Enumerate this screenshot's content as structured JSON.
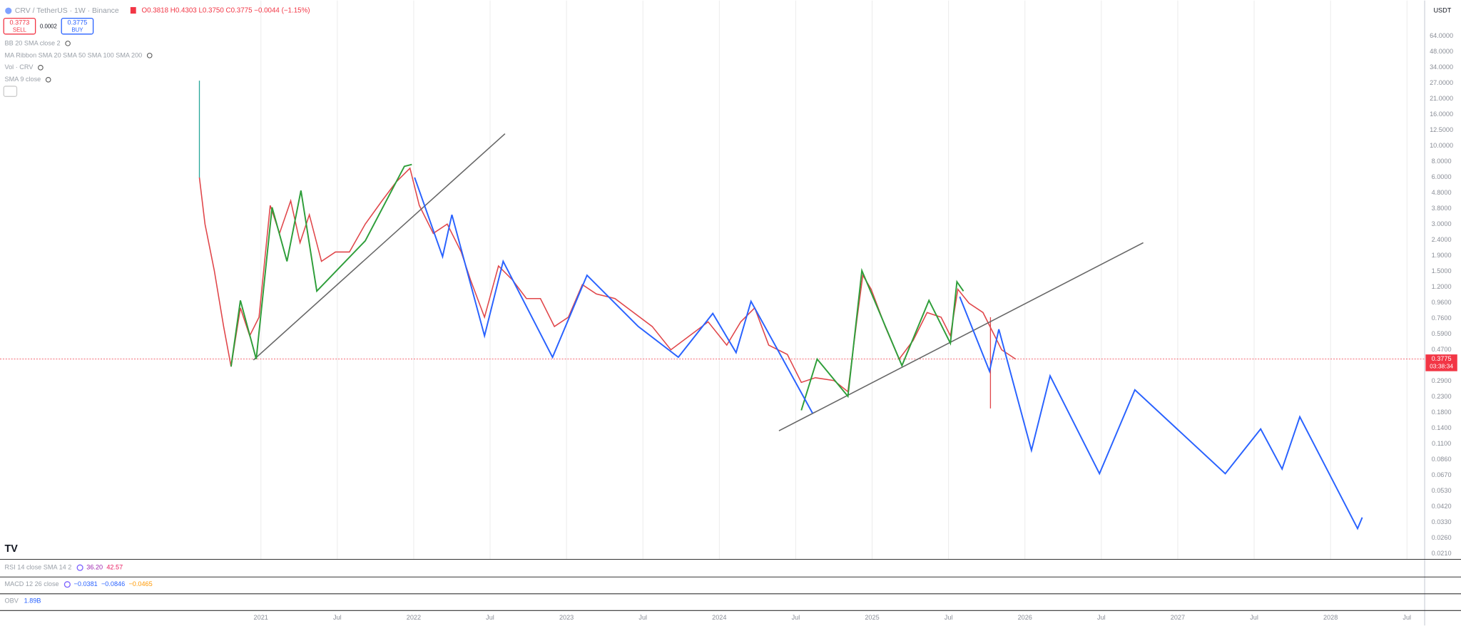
{
  "header": {
    "symbol": "CRV / TetherUS · 1W · Binance",
    "ohlc": "O0.3818 H0.4303 L0.3750 C0.3775 −0.0044 (−1.15%)",
    "sell_price": "0.3773",
    "sell_label": "SELL",
    "spread": "0.0002",
    "buy_price": "0.3775",
    "buy_label": "BUY"
  },
  "indicators": [
    "BB 20 SMA close 2",
    "MA Ribbon SMA 20 SMA 50 SMA 100 SMA 200",
    "Vol · CRV",
    "SMA 9 close"
  ],
  "currency": "USDT",
  "price_axis": [
    "64.0000",
    "48.0000",
    "34.0000",
    "27.0000",
    "21.0000",
    "16.0000",
    "12.5000",
    "10.0000",
    "8.0000",
    "6.0000",
    "4.8000",
    "3.8000",
    "3.0000",
    "2.4000",
    "1.9000",
    "1.5000",
    "1.2000",
    "0.9600",
    "0.7600",
    "0.5900",
    "0.4700",
    "0.2900",
    "0.2300",
    "0.1800",
    "0.1400",
    "0.1100",
    "0.0860",
    "0.0670",
    "0.0530",
    "0.0420",
    "0.0330",
    "0.0260",
    "0.0210"
  ],
  "current_price": {
    "price": "0.3775",
    "countdown": "03:38:34"
  },
  "time_axis": [
    "2021",
    "Jul",
    "2022",
    "Jul",
    "2023",
    "Jul",
    "2024",
    "Jul",
    "2025",
    "Jul",
    "2026",
    "Jul",
    "2027",
    "Jul",
    "2028",
    "Jul"
  ],
  "panes": [
    {
      "label": "RSI 14 close SMA 14 2",
      "values": [
        "36.20",
        "42.57"
      ]
    },
    {
      "label": "MACD 12 26 close",
      "values": [
        "−0.0381",
        "−0.0846",
        "−0.0465"
      ]
    },
    {
      "label": "OBV",
      "values": [
        "1.89B"
      ]
    }
  ]
}
